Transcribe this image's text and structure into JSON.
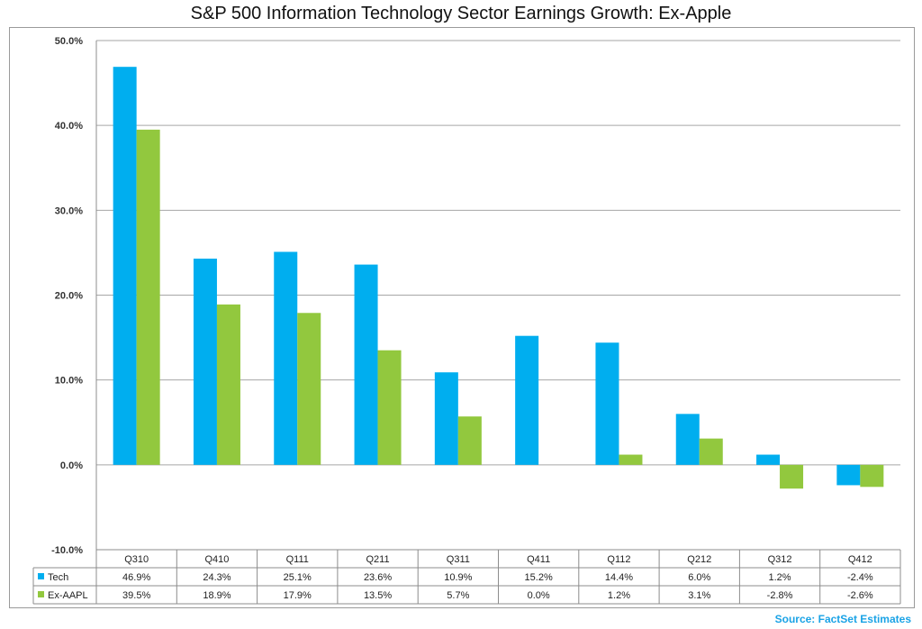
{
  "title": "S&P 500 Information Technology Sector Earnings Growth: Ex-Apple",
  "source": "Source: FactSet Estimates",
  "chart_data": {
    "type": "bar",
    "title": "S&P 500 Information Technology Sector Earnings Growth: Ex-Apple",
    "categories": [
      "Q310",
      "Q410",
      "Q111",
      "Q211",
      "Q311",
      "Q411",
      "Q112",
      "Q212",
      "Q312",
      "Q412"
    ],
    "series": [
      {
        "name": "Tech",
        "color": "#00aeef",
        "values": [
          46.9,
          24.3,
          25.1,
          23.6,
          10.9,
          15.2,
          14.4,
          6.0,
          1.2,
          -2.4
        ],
        "labels": [
          "46.9%",
          "24.3%",
          "25.1%",
          "23.6%",
          "10.9%",
          "15.2%",
          "14.4%",
          "6.0%",
          "1.2%",
          "-2.4%"
        ]
      },
      {
        "name": "Ex-AAPL",
        "color": "#92c83e",
        "values": [
          39.5,
          18.9,
          17.9,
          13.5,
          5.7,
          0.0,
          1.2,
          3.1,
          -2.8,
          -2.6
        ],
        "labels": [
          "39.5%",
          "18.9%",
          "17.9%",
          "13.5%",
          "5.7%",
          "0.0%",
          "1.2%",
          "3.1%",
          "-2.8%",
          "-2.6%"
        ]
      }
    ],
    "ylim": [
      -10,
      50
    ],
    "yticks": [
      50,
      40,
      30,
      20,
      10,
      0,
      -10
    ],
    "ytick_labels": [
      "50.0%",
      "40.0%",
      "30.0%",
      "20.0%",
      "10.0%",
      "0.0%",
      "-10.0%"
    ],
    "grid": true,
    "legend": "data-table"
  }
}
